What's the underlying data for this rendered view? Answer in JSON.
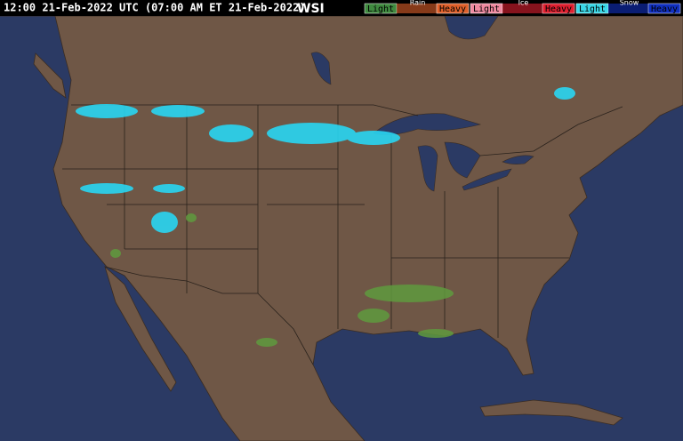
{
  "header": {
    "timestamp": "12:00 21-Feb-2022 UTC  (07:00 AM ET 21-Feb-2022)",
    "logo": "WSI"
  },
  "legend": [
    {
      "name": "Rain",
      "low": "Light",
      "high": "Heavy"
    },
    {
      "name": "Ice",
      "low": "Light",
      "high": "Heavy"
    },
    {
      "name": "Snow",
      "low": "Light",
      "high": "Heavy"
    }
  ]
}
